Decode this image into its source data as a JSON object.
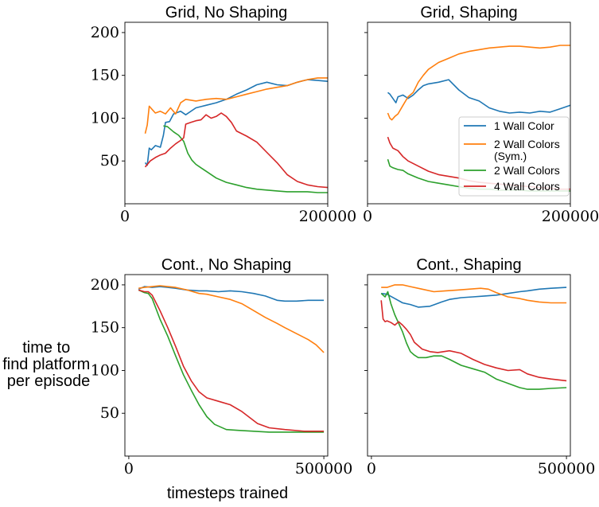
{
  "figure": {
    "ylabel_lines": [
      "time to",
      "find platform",
      "per episode"
    ],
    "xlabel": "timesteps trained",
    "ylim": [
      0,
      212
    ],
    "yticks": [
      50,
      100,
      150,
      200
    ],
    "legend": {
      "placement": "lower-right of Grid, Shaping panel",
      "entries": [
        {
          "lines": [
            "1 Wall Color"
          ],
          "series": 0
        },
        {
          "lines": [
            "2 Wall Colors",
            "(Sym.)"
          ],
          "series": 1
        },
        {
          "lines": [
            "2 Wall Colors"
          ],
          "series": 2
        },
        {
          "lines": [
            "4 Wall Colors"
          ],
          "series": 3
        }
      ]
    }
  },
  "colors": [
    "#1f77b4",
    "#ff7f0e",
    "#2ca02c",
    "#d62728"
  ],
  "chart_data": [
    {
      "type": "line",
      "title": "Grid, No Shaping",
      "xlim": [
        0,
        200000
      ],
      "xticks": [
        0,
        200000
      ],
      "series": [
        {
          "name": "1 Wall Color",
          "color": "#1f77b4",
          "x": [
            20000,
            22000,
            24000,
            26000,
            30000,
            35000,
            38000,
            40000,
            44000,
            48000,
            55000,
            60000,
            70000,
            80000,
            90000,
            100000,
            110000,
            120000,
            130000,
            140000,
            150000,
            160000,
            170000,
            180000,
            190000,
            200000
          ],
          "y": [
            48,
            45,
            65,
            63,
            68,
            66,
            80,
            95,
            96,
            105,
            108,
            104,
            112,
            115,
            118,
            122,
            128,
            133,
            139,
            142,
            139,
            138,
            142,
            145,
            144,
            143
          ]
        },
        {
          "name": "2 Wall Colors (Sym.)",
          "color": "#ff7f0e",
          "x": [
            20000,
            22000,
            24000,
            27000,
            30000,
            35000,
            40000,
            45000,
            50000,
            55000,
            60000,
            70000,
            80000,
            90000,
            100000,
            110000,
            120000,
            130000,
            140000,
            150000,
            160000,
            170000,
            180000,
            190000,
            200000
          ],
          "y": [
            82,
            92,
            114,
            110,
            106,
            108,
            105,
            112,
            105,
            118,
            122,
            120,
            122,
            123,
            122,
            125,
            128,
            131,
            134,
            136,
            138,
            142,
            145,
            147,
            147
          ]
        },
        {
          "name": "2 Wall Colors",
          "color": "#2ca02c",
          "x": [
            38000,
            42000,
            48000,
            53000,
            58000,
            62000,
            66000,
            70000,
            75000,
            80000,
            90000,
            100000,
            110000,
            120000,
            130000,
            140000,
            150000,
            160000,
            170000,
            180000,
            190000,
            200000
          ],
          "y": [
            91,
            90,
            84,
            80,
            73,
            59,
            51,
            46,
            42,
            38,
            30,
            25,
            22,
            19,
            17,
            16,
            15,
            14,
            14,
            14,
            13,
            13
          ]
        },
        {
          "name": "4 Wall Colors",
          "color": "#d62728",
          "x": [
            20000,
            25000,
            30000,
            35000,
            40000,
            45000,
            50000,
            55000,
            58000,
            60000,
            65000,
            70000,
            75000,
            80000,
            85000,
            90000,
            95000,
            100000,
            105000,
            110000,
            120000,
            130000,
            140000,
            150000,
            160000,
            170000,
            180000,
            190000,
            200000
          ],
          "y": [
            43,
            50,
            54,
            57,
            59,
            65,
            70,
            74,
            77,
            93,
            95,
            97,
            98,
            104,
            100,
            102,
            106,
            102,
            95,
            85,
            79,
            72,
            60,
            48,
            34,
            26,
            22,
            20,
            19
          ]
        }
      ]
    },
    {
      "type": "line",
      "title": "Grid, Shaping",
      "xlim": [
        0,
        200000
      ],
      "xticks": [
        0,
        200000
      ],
      "series": [
        {
          "name": "1 Wall Color",
          "color": "#1f77b4",
          "x": [
            20000,
            22000,
            25000,
            28000,
            30000,
            35000,
            40000,
            45000,
            50000,
            55000,
            60000,
            70000,
            80000,
            90000,
            100000,
            110000,
            120000,
            130000,
            140000,
            150000,
            160000,
            170000,
            180000,
            190000,
            200000
          ],
          "y": [
            130,
            128,
            123,
            118,
            125,
            127,
            123,
            127,
            133,
            138,
            140,
            142,
            145,
            133,
            124,
            120,
            112,
            108,
            106,
            107,
            106,
            108,
            107,
            111,
            115
          ]
        },
        {
          "name": "2 Wall Colors (Sym.)",
          "color": "#ff7f0e",
          "x": [
            20000,
            22000,
            24000,
            27000,
            30000,
            35000,
            40000,
            45000,
            50000,
            55000,
            60000,
            70000,
            80000,
            90000,
            100000,
            110000,
            120000,
            130000,
            140000,
            150000,
            160000,
            170000,
            180000,
            190000,
            200000
          ],
          "y": [
            106,
            100,
            98,
            102,
            105,
            115,
            125,
            130,
            142,
            150,
            157,
            165,
            170,
            175,
            178,
            180,
            182,
            183,
            184,
            184,
            183,
            182,
            183,
            185,
            185
          ]
        },
        {
          "name": "2 Wall Colors",
          "color": "#2ca02c",
          "x": [
            20000,
            22000,
            25000,
            30000,
            35000,
            40000,
            50000,
            60000,
            70000,
            80000,
            90000,
            100000,
            110000,
            120000,
            130000,
            140000,
            150000,
            160000,
            170000,
            180000,
            190000,
            200000
          ],
          "y": [
            52,
            44,
            42,
            40,
            39,
            35,
            30,
            26,
            24,
            22,
            20,
            18,
            17,
            17,
            16,
            16,
            16,
            15,
            15,
            15,
            15,
            15
          ]
        },
        {
          "name": "4 Wall Colors",
          "color": "#d62728",
          "x": [
            20000,
            22000,
            25000,
            30000,
            35000,
            40000,
            50000,
            60000,
            70000,
            80000,
            90000,
            100000,
            110000,
            120000,
            130000,
            140000,
            150000,
            160000,
            170000,
            180000,
            190000,
            200000
          ],
          "y": [
            78,
            71,
            65,
            62,
            55,
            50,
            44,
            38,
            34,
            32,
            30,
            27,
            25,
            24,
            23,
            22,
            21,
            20,
            19,
            18,
            17,
            17
          ]
        }
      ]
    },
    {
      "type": "line",
      "title": "Cont., No Shaping",
      "xlim": [
        -10000,
        510000
      ],
      "xticks": [
        0,
        500000
      ],
      "series": [
        {
          "name": "1 Wall Color",
          "color": "#1f77b4",
          "x": [
            25000,
            40000,
            60000,
            80000,
            100000,
            120000,
            150000,
            180000,
            200000,
            230000,
            260000,
            290000,
            320000,
            350000,
            380000,
            400000,
            430000,
            460000,
            500000
          ],
          "y": [
            195,
            198,
            197,
            198,
            197,
            196,
            194,
            193,
            193,
            192,
            193,
            192,
            190,
            187,
            182,
            181,
            181,
            182,
            182
          ]
        },
        {
          "name": "2 Wall Colors (Sym.)",
          "color": "#ff7f0e",
          "x": [
            25000,
            40000,
            60000,
            80000,
            100000,
            120000,
            150000,
            180000,
            200000,
            230000,
            260000,
            290000,
            320000,
            350000,
            380000,
            400000,
            430000,
            460000,
            480000,
            500000
          ],
          "y": [
            196,
            197,
            198,
            199,
            198,
            197,
            194,
            190,
            189,
            186,
            183,
            178,
            170,
            162,
            155,
            150,
            143,
            136,
            130,
            121
          ]
        },
        {
          "name": "2 Wall Colors",
          "color": "#2ca02c",
          "x": [
            25000,
            40000,
            50000,
            60000,
            80000,
            100000,
            120000,
            140000,
            160000,
            180000,
            200000,
            220000,
            250000,
            280000,
            320000,
            360000,
            400000,
            450000,
            500000
          ],
          "y": [
            194,
            191,
            190,
            184,
            160,
            140,
            117,
            95,
            77,
            60,
            46,
            37,
            31,
            30,
            29,
            28,
            28,
            28,
            28
          ]
        },
        {
          "name": "4 Wall Colors",
          "color": "#d62728",
          "x": [
            25000,
            40000,
            50000,
            60000,
            80000,
            100000,
            120000,
            140000,
            160000,
            180000,
            200000,
            230000,
            260000,
            290000,
            310000,
            330000,
            360000,
            400000,
            450000,
            500000
          ],
          "y": [
            194,
            192,
            192,
            188,
            170,
            150,
            128,
            105,
            88,
            75,
            68,
            64,
            60,
            52,
            45,
            38,
            33,
            31,
            29,
            29
          ]
        }
      ]
    },
    {
      "type": "line",
      "title": "Cont., Shaping",
      "xlim": [
        -10000,
        510000
      ],
      "xticks": [
        0,
        500000
      ],
      "series": [
        {
          "name": "1 Wall Color",
          "color": "#1f77b4",
          "x": [
            25000,
            40000,
            60000,
            80000,
            100000,
            120000,
            150000,
            180000,
            200000,
            230000,
            260000,
            290000,
            320000,
            350000,
            380000,
            400000,
            430000,
            460000,
            500000
          ],
          "y": [
            190,
            189,
            184,
            179,
            177,
            174,
            175,
            180,
            183,
            185,
            186,
            187,
            188,
            190,
            192,
            193,
            195,
            196,
            197
          ]
        },
        {
          "name": "2 Wall Colors (Sym.)",
          "color": "#ff7f0e",
          "x": [
            25000,
            40000,
            60000,
            80000,
            100000,
            130000,
            160000,
            190000,
            220000,
            250000,
            280000,
            300000,
            320000,
            350000,
            380000,
            400000,
            430000,
            460000,
            500000
          ],
          "y": [
            197,
            197,
            200,
            200,
            198,
            195,
            192,
            193,
            194,
            195,
            196,
            195,
            191,
            186,
            184,
            182,
            180,
            179,
            179
          ]
        },
        {
          "name": "2 Wall Colors",
          "color": "#2ca02c",
          "x": [
            25000,
            35000,
            42000,
            50000,
            60000,
            70000,
            80000,
            90000,
            100000,
            110000,
            120000,
            140000,
            160000,
            180000,
            200000,
            230000,
            260000,
            290000,
            320000,
            350000,
            380000,
            400000,
            430000,
            460000,
            500000
          ],
          "y": [
            190,
            186,
            192,
            178,
            165,
            155,
            145,
            132,
            122,
            118,
            115,
            115,
            117,
            117,
            113,
            106,
            102,
            98,
            90,
            85,
            80,
            78,
            78,
            79,
            80
          ]
        },
        {
          "name": "4 Wall Colors",
          "color": "#d62728",
          "x": [
            25000,
            30000,
            35000,
            40000,
            50000,
            60000,
            70000,
            80000,
            90000,
            100000,
            110000,
            130000,
            150000,
            170000,
            200000,
            230000,
            260000,
            290000,
            320000,
            350000,
            380000,
            400000,
            430000,
            460000,
            500000
          ],
          "y": [
            182,
            160,
            157,
            158,
            156,
            153,
            157,
            153,
            148,
            142,
            133,
            125,
            122,
            121,
            123,
            120,
            113,
            107,
            103,
            100,
            101,
            96,
            92,
            90,
            88
          ]
        }
      ]
    }
  ]
}
